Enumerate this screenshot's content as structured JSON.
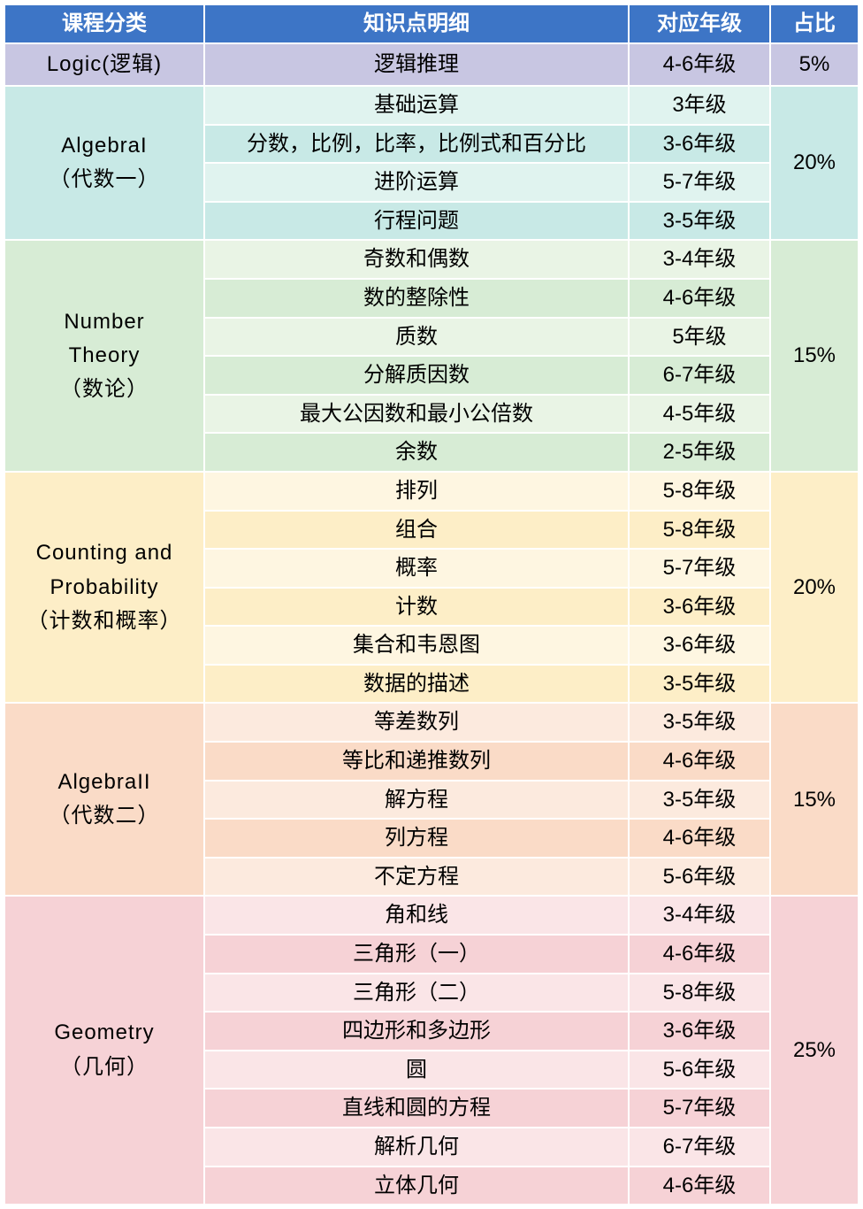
{
  "header": {
    "bg": "#3d75c6",
    "fg": "#ffffff",
    "cols": [
      "课程分类",
      "知识点明细",
      "对应年级",
      "占比"
    ],
    "widths": [
      226,
      480,
      160,
      100
    ]
  },
  "sections": [
    {
      "category": "Logic(逻辑)",
      "cat_bg": "#c8c6e2",
      "row_bg_odd": "#c8c6e2",
      "row_bg_even": "#c8c6e2",
      "percent": "5%",
      "percent_bg": "#c8c6e2",
      "rows": [
        {
          "topic": "逻辑推理",
          "grade": "4-6年级"
        }
      ]
    },
    {
      "category": "AlgebraI\n（代数一）",
      "cat_bg": "#c8e9e6",
      "row_bg_odd": "#e0f3ef",
      "row_bg_even": "#c8e9e6",
      "percent": "20%",
      "percent_bg": "#c8e9e6",
      "rows": [
        {
          "topic": "基础运算",
          "grade": "3年级"
        },
        {
          "topic": "分数，比例，比率，比例式和百分比",
          "grade": "3-6年级"
        },
        {
          "topic": "进阶运算",
          "grade": "5-7年级"
        },
        {
          "topic": "行程问题",
          "grade": "3-5年级"
        }
      ]
    },
    {
      "category": "Number\nTheory\n（数论）",
      "cat_bg": "#d7ecd5",
      "row_bg_odd": "#e9f4e5",
      "row_bg_even": "#d7ecd5",
      "percent": "15%",
      "percent_bg": "#d7ecd5",
      "rows": [
        {
          "topic": "奇数和偶数",
          "grade": "3-4年级"
        },
        {
          "topic": "数的整除性",
          "grade": "4-6年级"
        },
        {
          "topic": "质数",
          "grade": "5年级"
        },
        {
          "topic": "分解质因数",
          "grade": "6-7年级"
        },
        {
          "topic": "最大公因数和最小公倍数",
          "grade": "4-5年级"
        },
        {
          "topic": "余数",
          "grade": "2-5年级"
        }
      ]
    },
    {
      "category": "Counting and\nProbability\n（计数和概率）",
      "cat_bg": "#fdeec7",
      "row_bg_odd": "#fef6e1",
      "row_bg_even": "#fdeec7",
      "percent": "20%",
      "percent_bg": "#fdeec7",
      "rows": [
        {
          "topic": "排列",
          "grade": "5-8年级"
        },
        {
          "topic": "组合",
          "grade": "5-8年级"
        },
        {
          "topic": "概率",
          "grade": "5-7年级"
        },
        {
          "topic": "计数",
          "grade": "3-6年级"
        },
        {
          "topic": "集合和韦恩图",
          "grade": "3-6年级"
        },
        {
          "topic": "数据的描述",
          "grade": "3-5年级"
        }
      ]
    },
    {
      "category": "AlgebraII\n（代数二）",
      "cat_bg": "#fadbc7",
      "row_bg_odd": "#fceade",
      "row_bg_even": "#fadbc7",
      "percent": "15%",
      "percent_bg": "#fadbc7",
      "rows": [
        {
          "topic": "等差数列",
          "grade": "3-5年级"
        },
        {
          "topic": "等比和递推数列",
          "grade": "4-6年级"
        },
        {
          "topic": "解方程",
          "grade": "3-5年级"
        },
        {
          "topic": "列方程",
          "grade": "4-6年级"
        },
        {
          "topic": "不定方程",
          "grade": "5-6年级"
        }
      ]
    },
    {
      "category": "Geometry\n（几何）",
      "cat_bg": "#f6d2d6",
      "row_bg_odd": "#fae5e7",
      "row_bg_even": "#f6d2d6",
      "percent": "25%",
      "percent_bg": "#f6d2d6",
      "rows": [
        {
          "topic": "角和线",
          "grade": "3-4年级"
        },
        {
          "topic": "三角形（一）",
          "grade": "4-6年级"
        },
        {
          "topic": "三角形（二）",
          "grade": "5-8年级"
        },
        {
          "topic": "四边形和多边形",
          "grade": "3-6年级"
        },
        {
          "topic": "圆",
          "grade": "5-6年级"
        },
        {
          "topic": "直线和圆的方程",
          "grade": "5-7年级"
        },
        {
          "topic": "解析几何",
          "grade": "6-7年级"
        },
        {
          "topic": "立体几何",
          "grade": "4-6年级"
        }
      ]
    }
  ]
}
